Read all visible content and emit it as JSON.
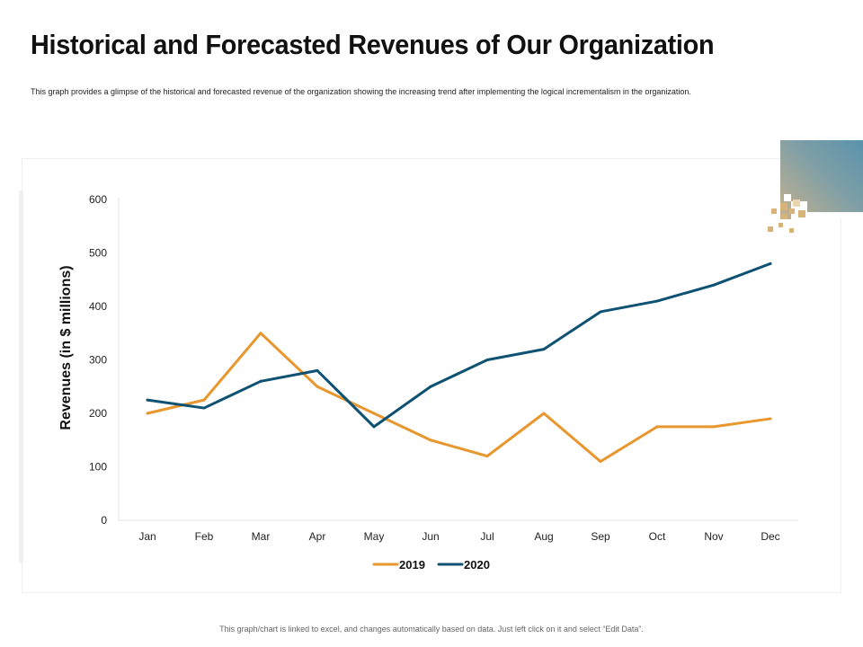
{
  "page": {
    "title": "Historical and Forecasted Revenues of Our Organization",
    "subtitle": "This graph provides a glimpse of the historical and forecasted revenue of the organization showing the increasing trend after implementing the logical incrementalism in the organization.",
    "footer": "This graph/chart is linked to excel, and changes automatically based on data. Just left click on it and select “Edit Data”."
  },
  "chart_data": {
    "type": "line",
    "title": "",
    "xlabel": "",
    "ylabel": "Revenues (in $ millions)",
    "categories": [
      "Jan",
      "Feb",
      "Mar",
      "Apr",
      "May",
      "Jun",
      "Jul",
      "Aug",
      "Sep",
      "Oct",
      "Nov",
      "Dec"
    ],
    "ylim": [
      0,
      600
    ],
    "yticks": [
      0,
      100,
      200,
      300,
      400,
      500,
      600
    ],
    "grid": false,
    "legend_position": "bottom",
    "series": [
      {
        "name": "2019",
        "color": "#e8962e",
        "values": [
          200,
          225,
          350,
          250,
          200,
          150,
          120,
          200,
          110,
          175,
          175,
          190
        ]
      },
      {
        "name": "2020",
        "color": "#0d5272",
        "values": [
          225,
          210,
          260,
          280,
          175,
          250,
          300,
          320,
          390,
          410,
          440,
          480
        ]
      }
    ]
  }
}
